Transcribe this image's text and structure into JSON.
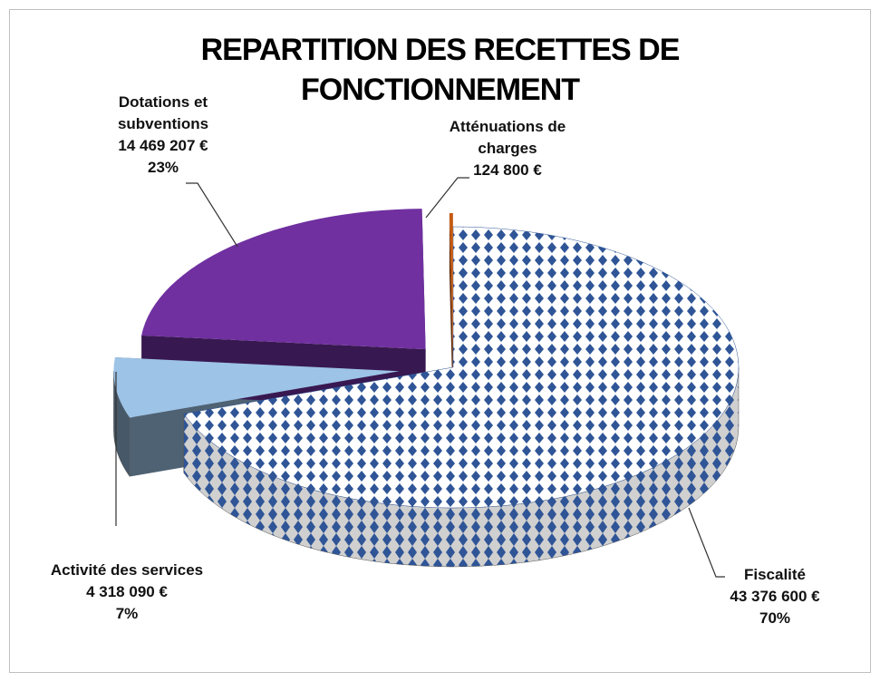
{
  "chart_data": {
    "type": "pie",
    "title": [
      "REPARTITION DES RECETTES  DE",
      "FONCTIONNEMENT"
    ],
    "categories": [
      "Fiscalité",
      "Activité des services",
      "Dotations et subventions",
      "Atténuations de charges"
    ],
    "values": [
      43376600,
      4318090,
      14469207,
      124800
    ],
    "value_labels": [
      "43 376 600 €",
      "4 318 090 €",
      "14 469 207 €",
      "124 800 €"
    ],
    "percentages": [
      70,
      7,
      23,
      null
    ],
    "percentage_labels": [
      "70%",
      "7%",
      "23%",
      null
    ],
    "colors": [
      "#2f5597",
      "#9dc3e6",
      "#7030a0",
      "#c55a11"
    ]
  }
}
